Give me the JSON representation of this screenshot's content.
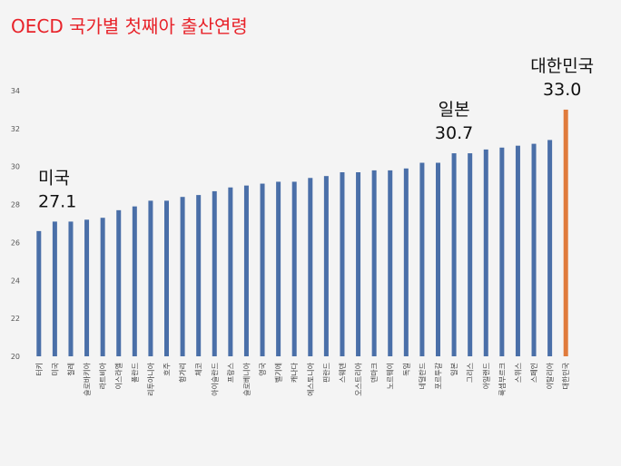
{
  "chart_data": {
    "type": "bar",
    "title": "OECD 국가별 첫째아 출산연령",
    "xlabel": "",
    "ylabel": "",
    "ylim": [
      20,
      34
    ],
    "yticks": [
      20,
      22,
      24,
      26,
      28,
      30,
      32,
      34
    ],
    "grid": false,
    "legend": "none",
    "colors": {
      "default": "#4a6fa8",
      "highlight": "#e07b3c",
      "title": "#e8232a"
    },
    "categories": [
      "터키",
      "미국",
      "칠레",
      "슬로바키아",
      "라트비아",
      "이스라엘",
      "폴란드",
      "리투아니아",
      "호주",
      "헝가리",
      "체코",
      "아이슬란드",
      "프랑스",
      "슬로베니아",
      "영국",
      "벨기에",
      "캐나다",
      "에스토니아",
      "핀란드",
      "스웨덴",
      "오스트리아",
      "덴마크",
      "노르웨이",
      "독일",
      "네덜란드",
      "포르투갈",
      "일본",
      "그리스",
      "아일랜드",
      "룩셈부르크",
      "스위스",
      "스페인",
      "이탈리아",
      "대한민국"
    ],
    "values": [
      26.6,
      27.1,
      27.1,
      27.2,
      27.3,
      27.7,
      27.9,
      28.2,
      28.2,
      28.4,
      28.5,
      28.7,
      28.9,
      29.0,
      29.1,
      29.2,
      29.2,
      29.4,
      29.5,
      29.7,
      29.7,
      29.8,
      29.8,
      29.9,
      30.2,
      30.2,
      30.7,
      30.7,
      30.9,
      31.0,
      31.1,
      31.2,
      31.4,
      33.0
    ],
    "highlight_index": 33,
    "annotations": [
      {
        "label": "미국",
        "value_text": "27.1",
        "category": "미국"
      },
      {
        "label": "일본",
        "value_text": "30.7",
        "category": "일본"
      },
      {
        "label": "대한민국",
        "value_text": "33.0",
        "category": "대한민국"
      }
    ]
  }
}
